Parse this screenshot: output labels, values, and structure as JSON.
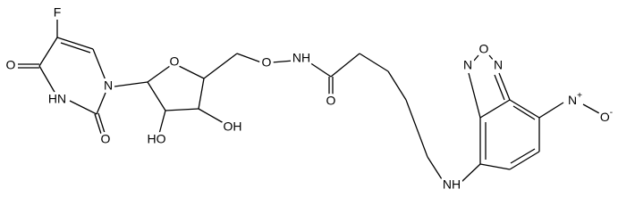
{
  "molecule": {
    "atoms": {
      "fluorine": "F",
      "uracil_o4": "O",
      "uracil_n3": "HN",
      "uracil_o2": "O",
      "uracil_n1": "N",
      "ring_oxygen": "O",
      "hydroxyl_2": "HO",
      "hydroxyl_3": "OH",
      "oxyamine_o": "O",
      "amide_n": "NH",
      "amide_o": "O",
      "furazan_n1": "N",
      "furazan_o": "O",
      "furazan_n2": "N",
      "amine_n": "NH",
      "nitro_n": "N",
      "nitro_n_charge": "+",
      "nitro_o": "O",
      "nitro_o_charge": "-"
    }
  }
}
